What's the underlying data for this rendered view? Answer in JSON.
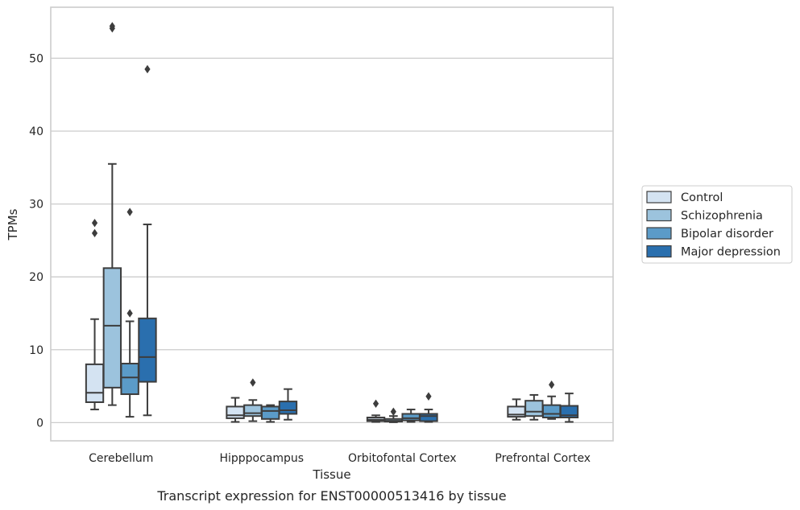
{
  "chart_data": {
    "type": "box",
    "title": "",
    "caption": "Transcript expression for ENST00000513416 by tissue",
    "xlabel": "Tissue",
    "ylabel": "TPMs",
    "ylim": [
      -2.5,
      57
    ],
    "yticks": [
      0,
      10,
      20,
      30,
      40,
      50
    ],
    "grid": "horizontal",
    "legend_position": "right",
    "categories": [
      "Cerebellum",
      "Hipppocampus",
      "Orbitofontal Cortex",
      "Prefrontal Cortex"
    ],
    "series": [
      {
        "name": "Control",
        "color": "#d4e3f2",
        "boxes": [
          {
            "whislo": 1.8,
            "q1": 2.8,
            "med": 4.1,
            "q3": 8.0,
            "whishi": 14.2,
            "fliers": [
              26.0,
              27.4
            ]
          },
          {
            "whislo": 0.1,
            "q1": 0.6,
            "med": 1.0,
            "q3": 2.2,
            "whishi": 3.4,
            "fliers": []
          },
          {
            "whislo": 0.1,
            "q1": 0.2,
            "med": 0.4,
            "q3": 0.7,
            "whishi": 1.0,
            "fliers": [
              2.6
            ]
          },
          {
            "whislo": 0.4,
            "q1": 0.8,
            "med": 1.1,
            "q3": 2.2,
            "whishi": 3.2,
            "fliers": []
          }
        ]
      },
      {
        "name": "Schizophrenia",
        "color": "#9cc3dd",
        "boxes": [
          {
            "whislo": 2.4,
            "q1": 4.8,
            "med": 13.3,
            "q3": 21.2,
            "whishi": 35.5,
            "fliers": [
              54.1,
              54.4
            ]
          },
          {
            "whislo": 0.2,
            "q1": 0.9,
            "med": 1.3,
            "q3": 2.4,
            "whishi": 3.1,
            "fliers": [
              5.5
            ]
          },
          {
            "whislo": 0.05,
            "q1": 0.15,
            "med": 0.25,
            "q3": 0.5,
            "whishi": 0.9,
            "fliers": [
              1.5
            ]
          },
          {
            "whislo": 0.4,
            "q1": 0.9,
            "med": 1.5,
            "q3": 3.0,
            "whishi": 3.8,
            "fliers": []
          }
        ]
      },
      {
        "name": "Bipolar disorder",
        "color": "#5b9bc8",
        "boxes": [
          {
            "whislo": 0.8,
            "q1": 3.9,
            "med": 6.2,
            "q3": 8.1,
            "whishi": 13.9,
            "fliers": [
              15.0,
              28.9
            ]
          },
          {
            "whislo": 0.1,
            "q1": 0.5,
            "med": 1.6,
            "q3": 2.2,
            "whishi": 2.4,
            "fliers": []
          },
          {
            "whislo": 0.1,
            "q1": 0.3,
            "med": 0.6,
            "q3": 1.2,
            "whishi": 1.8,
            "fliers": []
          },
          {
            "whislo": 0.5,
            "q1": 0.7,
            "med": 1.2,
            "q3": 2.4,
            "whishi": 3.6,
            "fliers": [
              5.2
            ]
          }
        ]
      },
      {
        "name": "Major depression",
        "color": "#2a6fae",
        "boxes": [
          {
            "whislo": 1.0,
            "q1": 5.6,
            "med": 9.0,
            "q3": 14.3,
            "whishi": 27.2,
            "fliers": [
              48.5
            ]
          },
          {
            "whislo": 0.4,
            "q1": 1.2,
            "med": 1.7,
            "q3": 2.9,
            "whishi": 4.6,
            "fliers": []
          },
          {
            "whislo": 0.1,
            "q1": 0.2,
            "med": 0.9,
            "q3": 1.2,
            "whishi": 1.8,
            "fliers": [
              3.6
            ]
          },
          {
            "whislo": 0.1,
            "q1": 0.7,
            "med": 1.0,
            "q3": 2.3,
            "whishi": 4.0,
            "fliers": []
          }
        ]
      }
    ]
  }
}
